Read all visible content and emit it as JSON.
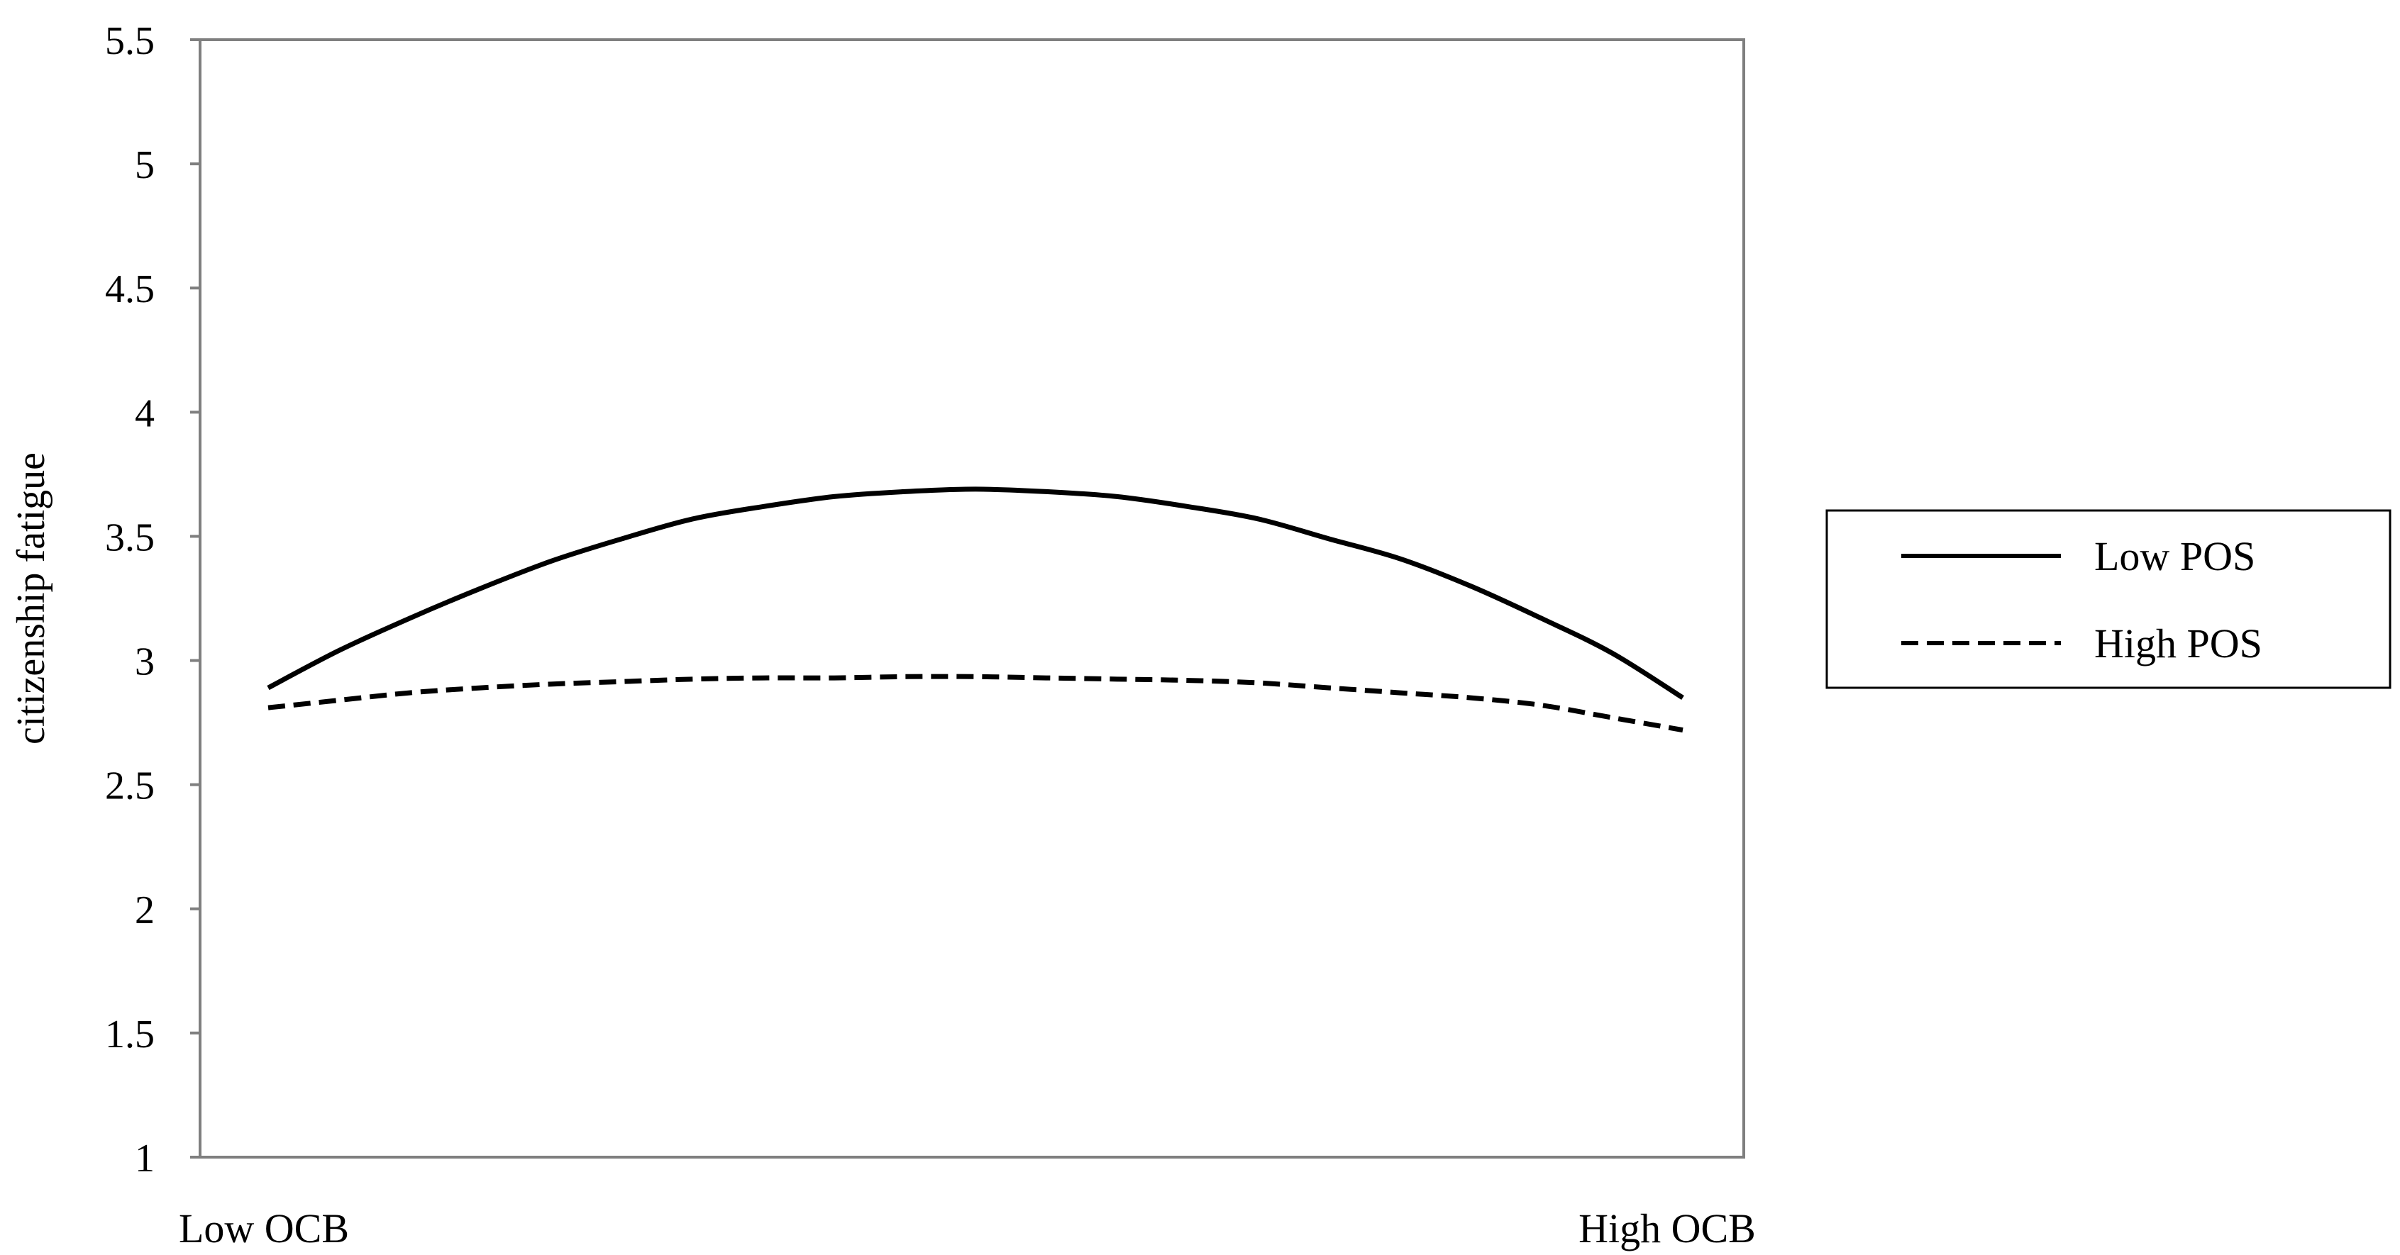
{
  "chart_data": {
    "type": "line",
    "xlabel": "",
    "ylabel": "citizenship fatigue",
    "x_tick_labels": [
      "Low OCB",
      "High OCB"
    ],
    "ylim": [
      1,
      5.5
    ],
    "yticks": [
      "1",
      "1.5",
      "2",
      "2.5",
      "3",
      "3.5",
      "4",
      "4.5",
      "5",
      "5.5"
    ],
    "grid": false,
    "legend_position": "right",
    "x": [
      0,
      0.05,
      0.1,
      0.15,
      0.2,
      0.25,
      0.3,
      0.35,
      0.4,
      0.45,
      0.5,
      0.55,
      0.6,
      0.65,
      0.7,
      0.75,
      0.8,
      0.85,
      0.9,
      0.95,
      1
    ],
    "series": [
      {
        "name": "Low POS",
        "style": "solid",
        "color": "#000000",
        "values": [
          2.89,
          3.04,
          3.17,
          3.29,
          3.4,
          3.49,
          3.57,
          3.62,
          3.66,
          3.68,
          3.69,
          3.68,
          3.66,
          3.62,
          3.57,
          3.49,
          3.41,
          3.3,
          3.17,
          3.03,
          2.85
        ]
      },
      {
        "name": "High POS",
        "style": "dashed",
        "color": "#000000",
        "values": [
          2.81,
          2.84,
          2.87,
          2.89,
          2.905,
          2.915,
          2.925,
          2.93,
          2.93,
          2.935,
          2.935,
          2.93,
          2.925,
          2.92,
          2.91,
          2.89,
          2.87,
          2.85,
          2.82,
          2.77,
          2.72
        ]
      }
    ]
  }
}
